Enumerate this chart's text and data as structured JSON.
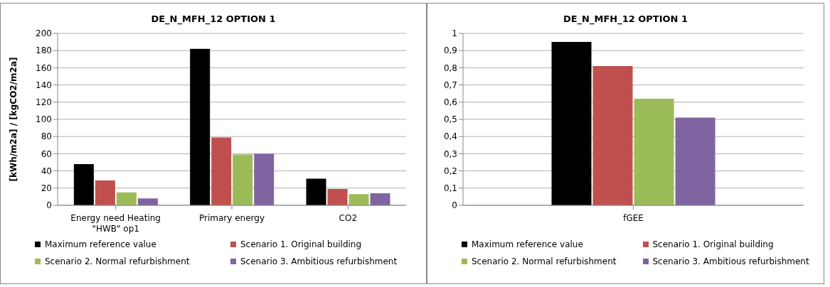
{
  "chart_data": [
    {
      "type": "bar",
      "title": "DE_N_MFH_12 OPTION 1",
      "ylabel": "[kWh/m2a] /  [kgCO2/m2a]",
      "categories": [
        "Energy need Heating \"HWB\" op1",
        "Primary energy",
        "CO2"
      ],
      "series": [
        {
          "name": "Maximum reference value",
          "color": "#000000",
          "values": [
            48,
            182,
            31
          ]
        },
        {
          "name": "Scenario 1. Original building",
          "color": "#c0504d",
          "values": [
            29,
            79,
            19
          ]
        },
        {
          "name": "Scenario 2. Normal refurbishment",
          "color": "#9bbb59",
          "values": [
            15,
            59,
            13
          ]
        },
        {
          "name": "Scenario 3. Ambitious refurbishment",
          "color": "#8064a2",
          "values": [
            8,
            60,
            14
          ]
        }
      ],
      "ylim": [
        0,
        200
      ],
      "yticks": [
        0,
        20,
        40,
        60,
        80,
        100,
        120,
        140,
        160,
        180,
        200
      ],
      "grid": "y",
      "legend": "bottom"
    },
    {
      "type": "bar",
      "title": "DE_N_MFH_12 OPTION 1",
      "categories": [
        "fGEE"
      ],
      "series": [
        {
          "name": "Maximum reference value",
          "color": "#000000",
          "values": [
            0.95
          ]
        },
        {
          "name": "Scenario 1. Original building",
          "color": "#c0504d",
          "values": [
            0.81
          ]
        },
        {
          "name": "Scenario 2. Normal refurbishment",
          "color": "#9bbb59",
          "values": [
            0.62
          ]
        },
        {
          "name": "Scenario 3. Ambitious refurbishment",
          "color": "#8064a2",
          "values": [
            0.51
          ]
        }
      ],
      "ylim": [
        0,
        1
      ],
      "yticks": [
        0,
        {
          "value": 0.1,
          "label": "0,1"
        },
        {
          "value": 0.2,
          "label": "0,2"
        },
        {
          "value": 0.3,
          "label": "0,3"
        },
        {
          "value": 0.4,
          "label": "0,4"
        },
        {
          "value": 0.5,
          "label": "0,5"
        },
        {
          "value": 0.6,
          "label": "0,6"
        },
        {
          "value": 0.7,
          "label": "0,7"
        },
        {
          "value": 0.8,
          "label": "0,8"
        },
        {
          "value": 0.9,
          "label": "0,9"
        },
        1
      ],
      "grid": "y",
      "legend": "bottom"
    }
  ]
}
